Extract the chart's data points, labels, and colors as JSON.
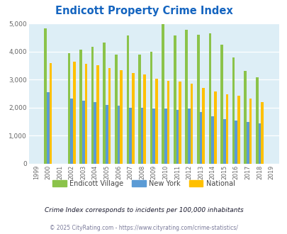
{
  "title": "Endicott Property Crime Index",
  "years": [
    1999,
    2000,
    2001,
    2002,
    2003,
    2004,
    2005,
    2006,
    2007,
    2008,
    2009,
    2010,
    2011,
    2012,
    2013,
    2014,
    2015,
    2016,
    2017,
    2018,
    2019
  ],
  "endicott": [
    null,
    4820,
    null,
    3940,
    4060,
    4170,
    4330,
    3880,
    4570,
    3880,
    4000,
    4980,
    4570,
    4770,
    4600,
    4650,
    4230,
    3790,
    3300,
    3090,
    null
  ],
  "new_york": [
    null,
    2540,
    null,
    2320,
    2260,
    2190,
    2090,
    2080,
    1990,
    1990,
    1960,
    1970,
    1920,
    1960,
    1840,
    1700,
    1600,
    1540,
    1490,
    1440,
    null
  ],
  "national": [
    null,
    3590,
    null,
    3630,
    3570,
    3510,
    3400,
    3330,
    3230,
    3190,
    3020,
    2960,
    2930,
    2860,
    2710,
    2580,
    2470,
    2430,
    2330,
    2190,
    null
  ],
  "endicott_color": "#8bc34a",
  "new_york_color": "#5b9bd5",
  "national_color": "#ffc000",
  "bg_color": "#ddeef6",
  "title_color": "#1565c0",
  "legend_text_color": "#444444",
  "subtitle_color": "#1a1a2e",
  "footer_color": "#7a7a9a",
  "subtitle": "Crime Index corresponds to incidents per 100,000 inhabitants",
  "footer": "© 2025 CityRating.com - https://www.cityrating.com/crime-statistics/",
  "ylim": [
    0,
    5000
  ],
  "yticks": [
    0,
    1000,
    2000,
    3000,
    4000,
    5000
  ],
  "grid_color": "#ffffff"
}
